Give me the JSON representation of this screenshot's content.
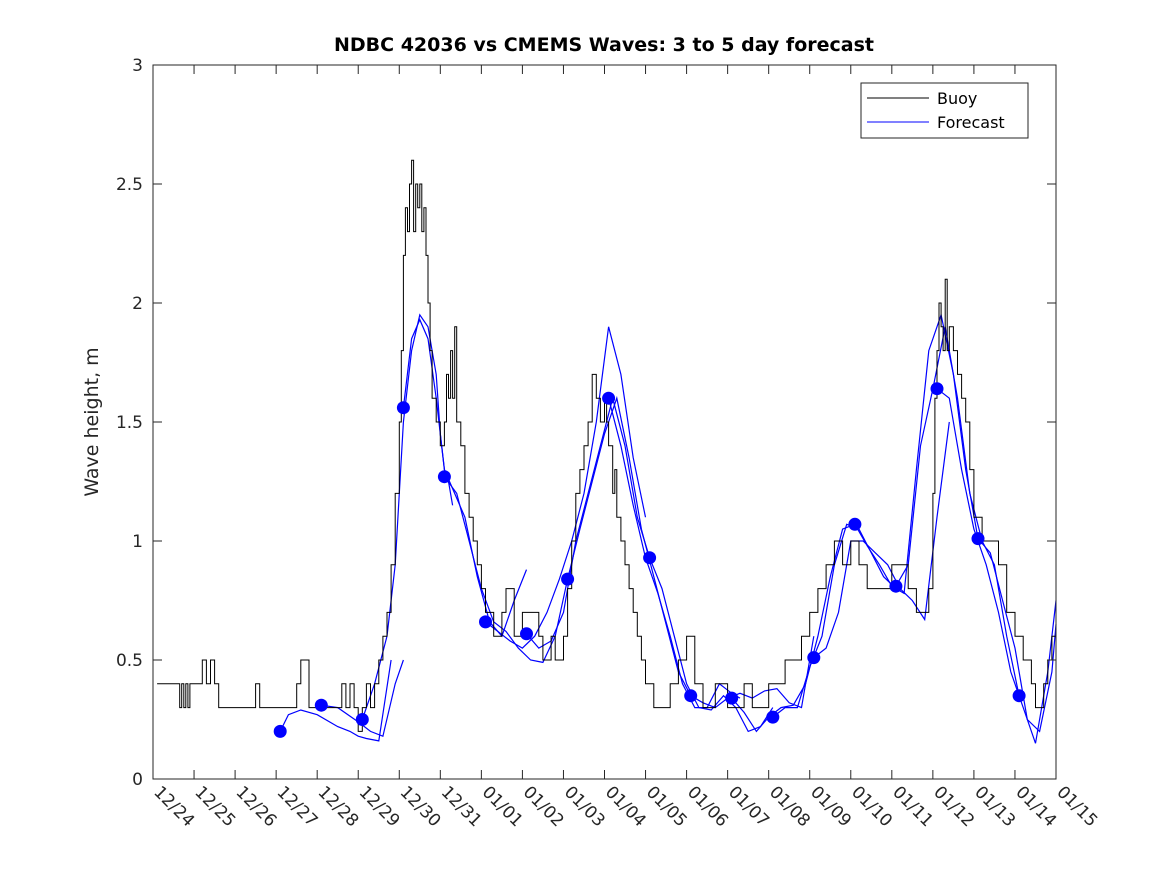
{
  "chart_data": {
    "type": "line",
    "title": "NDBC 42036 vs CMEMS Waves: 3 to 5 day forecast",
    "xlabel": "",
    "ylabel": "Wave height, m",
    "xlim": [
      0,
      22
    ],
    "ylim": [
      0,
      3
    ],
    "yticks": [
      0,
      0.5,
      1,
      1.5,
      2,
      2.5,
      3
    ],
    "ytick_labels": [
      "0",
      "0.5",
      "1",
      "1.5",
      "2",
      "2.5",
      "3"
    ],
    "xtick_labels": [
      "12/24",
      "12/25",
      "12/26",
      "12/27",
      "12/28",
      "12/29",
      "12/30",
      "12/31",
      "01/01",
      "01/02",
      "01/03",
      "01/04",
      "01/05",
      "01/06",
      "01/07",
      "01/08",
      "01/09",
      "01/10",
      "01/11",
      "01/12",
      "01/13",
      "01/14",
      "01/15"
    ],
    "x_units": "days since 12/24",
    "grid": false,
    "legend": {
      "position": "top-right",
      "entries": [
        "Buoy",
        "Forecast"
      ]
    },
    "colors": {
      "buoy": "#000000",
      "forecast": "#0000ff",
      "axes": "#262626"
    },
    "series": [
      {
        "name": "Buoy",
        "color": "#000000",
        "x": [
          0.1,
          0.6,
          0.65,
          0.7,
          0.75,
          0.8,
          0.85,
          0.9,
          1.0,
          1.1,
          1.2,
          1.3,
          1.4,
          1.5,
          1.6,
          1.7,
          1.8,
          2.0,
          2.4,
          2.5,
          2.6,
          2.7,
          3.0,
          3.4,
          3.5,
          3.6,
          3.8,
          3.9,
          4.1,
          4.2,
          4.5,
          4.6,
          4.7,
          4.8,
          4.9,
          5.0,
          5.1,
          5.2,
          5.3,
          5.4,
          5.5,
          5.6,
          5.7,
          5.8,
          5.9,
          6.0,
          6.05,
          6.1,
          6.15,
          6.2,
          6.25,
          6.3,
          6.35,
          6.4,
          6.45,
          6.5,
          6.55,
          6.6,
          6.65,
          6.7,
          6.75,
          6.8,
          6.9,
          7.0,
          7.1,
          7.15,
          7.2,
          7.25,
          7.3,
          7.35,
          7.4,
          7.5,
          7.6,
          7.7,
          7.8,
          7.9,
          8.0,
          8.1,
          8.2,
          8.3,
          8.4,
          8.5,
          8.6,
          8.8,
          9.0,
          9.2,
          9.4,
          9.5,
          9.6,
          9.7,
          9.8,
          9.9,
          10.0,
          10.1,
          10.2,
          10.3,
          10.4,
          10.5,
          10.6,
          10.7,
          10.8,
          10.9,
          11.0,
          11.05,
          11.1,
          11.15,
          11.2,
          11.25,
          11.3,
          11.35,
          11.4,
          11.5,
          11.6,
          11.7,
          11.8,
          11.9,
          12.0,
          12.2,
          12.4,
          12.6,
          12.8,
          13.0,
          13.2,
          13.4,
          13.6,
          13.7,
          13.8,
          14.0,
          14.2,
          14.4,
          14.6,
          14.8,
          15.0,
          15.2,
          15.4,
          15.6,
          15.8,
          16.0,
          16.2,
          16.4,
          16.6,
          16.8,
          17.0,
          17.2,
          17.4,
          17.6,
          17.8,
          18.0,
          18.2,
          18.4,
          18.6,
          18.8,
          18.9,
          19.0,
          19.05,
          19.1,
          19.15,
          19.2,
          19.25,
          19.3,
          19.35,
          19.4,
          19.5,
          19.6,
          19.7,
          19.8,
          19.9,
          20.0,
          20.2,
          20.4,
          20.6,
          20.8,
          21.0,
          21.2,
          21.4,
          21.5,
          21.6,
          21.7,
          21.8,
          21.9,
          22.0
        ],
        "values": [
          0.4,
          0.4,
          0.3,
          0.4,
          0.3,
          0.4,
          0.3,
          0.4,
          0.4,
          0.4,
          0.5,
          0.4,
          0.5,
          0.4,
          0.3,
          0.3,
          0.3,
          0.3,
          0.3,
          0.4,
          0.3,
          0.3,
          0.3,
          0.3,
          0.4,
          0.5,
          0.3,
          0.3,
          0.3,
          0.3,
          0.3,
          0.4,
          0.3,
          0.4,
          0.3,
          0.2,
          0.3,
          0.4,
          0.3,
          0.4,
          0.5,
          0.6,
          0.7,
          0.9,
          1.2,
          1.5,
          1.8,
          2.2,
          2.4,
          2.3,
          2.5,
          2.6,
          2.3,
          2.5,
          2.4,
          2.5,
          2.3,
          2.4,
          2.2,
          2.0,
          1.8,
          1.6,
          1.5,
          1.4,
          1.5,
          1.7,
          1.6,
          1.8,
          1.6,
          1.9,
          1.5,
          1.4,
          1.2,
          1.1,
          1.0,
          0.9,
          0.8,
          0.7,
          0.7,
          0.6,
          0.6,
          0.7,
          0.8,
          0.6,
          0.7,
          0.7,
          0.6,
          0.5,
          0.5,
          0.6,
          0.5,
          0.5,
          0.6,
          0.8,
          1.0,
          1.2,
          1.3,
          1.4,
          1.5,
          1.7,
          1.6,
          1.5,
          1.6,
          1.5,
          1.4,
          1.4,
          1.2,
          1.3,
          1.1,
          1.1,
          1.0,
          0.9,
          0.8,
          0.7,
          0.6,
          0.5,
          0.4,
          0.3,
          0.3,
          0.4,
          0.5,
          0.6,
          0.4,
          0.3,
          0.3,
          0.4,
          0.4,
          0.3,
          0.3,
          0.4,
          0.3,
          0.3,
          0.4,
          0.4,
          0.5,
          0.5,
          0.6,
          0.7,
          0.8,
          0.9,
          1.0,
          0.9,
          1.0,
          0.9,
          0.8,
          0.8,
          0.8,
          0.9,
          0.9,
          0.8,
          0.7,
          0.7,
          0.8,
          1.2,
          1.6,
          1.8,
          2.0,
          1.9,
          1.8,
          2.1,
          1.8,
          1.9,
          1.8,
          1.7,
          1.6,
          1.5,
          1.3,
          1.1,
          1.0,
          1.0,
          0.9,
          0.7,
          0.6,
          0.5,
          0.4,
          0.3,
          0.3,
          0.4,
          0.5,
          0.6,
          0.8
        ]
      },
      {
        "name": "Forecast",
        "color": "#0000ff",
        "segments": [
          {
            "x": [
              3.1,
              3.3,
              3.6,
              4.0,
              4.5,
              4.8,
              5.0,
              5.2,
              5.5,
              5.8
            ],
            "y": [
              0.2,
              0.27,
              0.29,
              0.27,
              0.22,
              0.2,
              0.18,
              0.17,
              0.16,
              0.5
            ]
          },
          {
            "x": [
              4.1,
              4.5,
              5.0,
              5.3,
              5.6,
              5.9,
              6.1
            ],
            "y": [
              0.31,
              0.3,
              0.24,
              0.2,
              0.18,
              0.4,
              0.5
            ]
          },
          {
            "x": [
              5.1,
              5.4,
              5.7,
              5.9,
              6.1,
              6.3,
              6.5,
              6.7,
              6.9,
              7.0,
              7.1,
              7.2,
              7.3
            ],
            "y": [
              0.25,
              0.4,
              0.6,
              0.9,
              1.5,
              1.8,
              1.95,
              1.9,
              1.7,
              1.45,
              1.3,
              1.25,
              1.15
            ]
          },
          {
            "x": [
              6.1,
              6.3,
              6.5,
              6.7,
              6.9,
              7.1,
              7.3,
              7.6,
              7.9,
              8.2,
              8.5,
              8.8,
              9.1
            ],
            "y": [
              1.56,
              1.85,
              1.93,
              1.85,
              1.6,
              1.3,
              1.22,
              1.1,
              0.85,
              0.66,
              0.6,
              0.75,
              0.88
            ]
          },
          {
            "x": [
              7.1,
              7.4,
              7.7,
              8.0,
              8.3,
              8.6,
              8.9,
              9.2,
              9.5,
              9.8,
              10.1
            ],
            "y": [
              1.27,
              1.2,
              1.0,
              0.8,
              0.66,
              0.62,
              0.55,
              0.5,
              0.49,
              0.6,
              0.84
            ]
          },
          {
            "x": [
              8.1,
              8.4,
              8.7,
              9.0,
              9.3,
              9.6,
              9.9,
              10.2,
              10.5,
              10.8,
              11.1,
              11.4,
              11.7,
              12.0
            ],
            "y": [
              0.66,
              0.62,
              0.58,
              0.55,
              0.6,
              0.7,
              0.84,
              1.0,
              1.2,
              1.5,
              1.9,
              1.7,
              1.35,
              1.1
            ]
          },
          {
            "x": [
              9.1,
              9.4,
              9.7,
              10.0,
              10.3,
              10.6,
              10.9,
              11.2,
              11.5,
              11.8,
              12.1
            ],
            "y": [
              0.61,
              0.55,
              0.58,
              0.7,
              1.0,
              1.2,
              1.4,
              1.6,
              1.4,
              1.1,
              0.93
            ]
          },
          {
            "x": [
              10.1,
              10.4,
              10.7,
              11.0,
              11.3,
              11.6,
              11.9,
              12.2,
              12.5,
              12.8,
              13.1
            ],
            "y": [
              0.84,
              1.05,
              1.25,
              1.45,
              1.6,
              1.35,
              1.05,
              0.85,
              0.65,
              0.45,
              0.35
            ]
          },
          {
            "x": [
              11.1,
              11.4,
              11.7,
              12.0,
              12.3,
              12.6,
              12.9,
              13.2,
              13.5,
              13.8,
              14.1,
              14.3
            ],
            "y": [
              1.6,
              1.4,
              1.15,
              0.93,
              0.78,
              0.6,
              0.4,
              0.3,
              0.3,
              0.4,
              0.36,
              0.34
            ]
          },
          {
            "x": [
              12.1,
              12.4,
              12.7,
              13.0,
              13.3,
              13.6,
              13.9,
              14.2,
              14.5,
              14.8,
              15.1
            ],
            "y": [
              0.93,
              0.8,
              0.6,
              0.4,
              0.3,
              0.29,
              0.35,
              0.3,
              0.2,
              0.22,
              0.3
            ]
          },
          {
            "x": [
              13.1,
              13.4,
              13.7,
              14.0,
              14.3,
              14.6,
              14.9,
              15.2,
              15.5,
              15.8,
              16.1
            ],
            "y": [
              0.35,
              0.32,
              0.3,
              0.34,
              0.36,
              0.34,
              0.37,
              0.38,
              0.32,
              0.3,
              0.6
            ]
          },
          {
            "x": [
              14.1,
              14.4,
              14.7,
              15.0,
              15.3,
              15.6,
              15.9,
              16.2,
              16.5,
              16.8,
              17.1
            ],
            "y": [
              0.34,
              0.28,
              0.2,
              0.26,
              0.3,
              0.31,
              0.4,
              0.6,
              0.85,
              1.05,
              1.07
            ]
          },
          {
            "x": [
              15.1,
              15.4,
              15.7,
              16.0,
              16.3,
              16.6,
              16.9,
              17.2,
              17.5,
              17.8,
              18.1
            ],
            "y": [
              0.26,
              0.3,
              0.3,
              0.47,
              0.6,
              0.9,
              1.07,
              1.05,
              0.95,
              0.85,
              0.8
            ]
          },
          {
            "x": [
              16.1,
              16.4,
              16.7,
              17.0,
              17.3,
              17.6,
              17.9,
              18.2,
              18.5,
              18.8,
              19.1,
              19.4
            ],
            "y": [
              0.51,
              0.55,
              0.7,
              1.0,
              1.0,
              0.95,
              0.9,
              0.8,
              0.75,
              0.67,
              1.1,
              1.5
            ]
          },
          {
            "x": [
              17.1,
              17.4,
              17.7,
              18.0,
              18.3,
              18.6,
              18.9,
              19.2,
              19.5,
              19.8,
              20.1
            ],
            "y": [
              1.07,
              0.98,
              0.9,
              0.81,
              0.78,
              1.3,
              1.8,
              1.95,
              1.7,
              1.3,
              1.01
            ]
          },
          {
            "x": [
              18.1,
              18.4,
              18.7,
              19.0,
              19.3,
              19.6,
              19.9,
              20.2,
              20.5,
              20.8,
              21.1
            ],
            "y": [
              0.81,
              0.9,
              1.4,
              1.64,
              1.9,
              1.6,
              1.2,
              1.0,
              0.9,
              0.6,
              0.35
            ]
          },
          {
            "x": [
              19.1,
              19.4,
              19.7,
              20.0,
              20.3,
              20.6,
              20.9,
              21.2,
              21.5,
              21.8,
              22.0
            ],
            "y": [
              1.64,
              1.6,
              1.3,
              1.05,
              0.9,
              0.7,
              0.45,
              0.3,
              0.15,
              0.45,
              0.75
            ]
          },
          {
            "x": [
              20.1,
              20.4,
              20.7,
              21.0,
              21.3,
              21.6,
              21.9,
              22.0
            ],
            "y": [
              1.01,
              0.95,
              0.75,
              0.55,
              0.25,
              0.2,
              0.45,
              0.65
            ]
          }
        ],
        "markers": {
          "x": [
            3.1,
            4.1,
            5.1,
            6.1,
            7.1,
            8.1,
            9.1,
            10.1,
            11.1,
            12.1,
            13.1,
            14.1,
            15.1,
            16.1,
            17.1,
            18.1,
            19.1,
            20.1,
            21.1
          ],
          "y": [
            0.2,
            0.31,
            0.25,
            1.56,
            1.27,
            0.66,
            0.61,
            0.84,
            1.6,
            0.93,
            0.35,
            0.34,
            0.26,
            0.51,
            1.07,
            0.81,
            1.64,
            1.01,
            0.35
          ]
        }
      }
    ]
  }
}
